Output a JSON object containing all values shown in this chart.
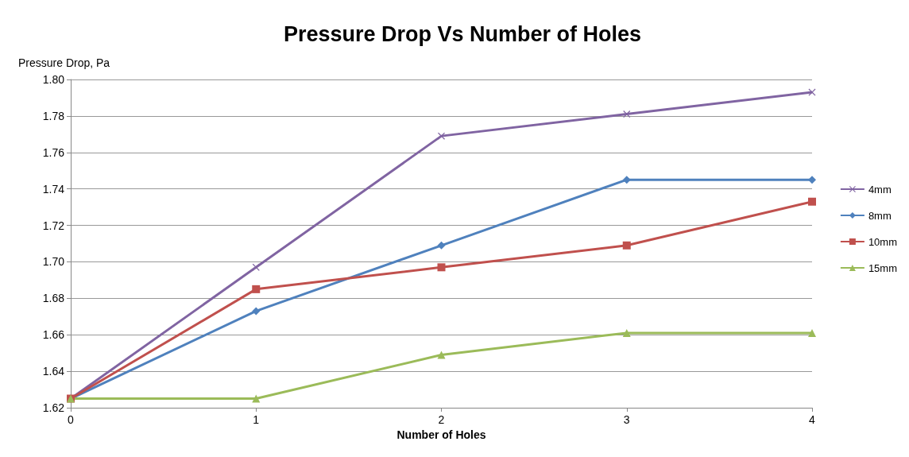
{
  "chart_data": {
    "type": "line",
    "title": "Pressure Drop Vs Number of Holes",
    "xlabel": "Number of Holes",
    "ylabel": "Pressure Drop, Pa",
    "x": [
      0,
      1,
      2,
      3,
      4
    ],
    "series": [
      {
        "name": "4mm",
        "color": "#8064a2",
        "marker": "cross",
        "values": [
          1.625,
          1.697,
          1.769,
          1.781,
          1.793
        ]
      },
      {
        "name": "8mm",
        "color": "#4f81bd",
        "marker": "diamond",
        "values": [
          1.625,
          1.673,
          1.709,
          1.745,
          1.745
        ]
      },
      {
        "name": "10mm",
        "color": "#c0504d",
        "marker": "square",
        "values": [
          1.625,
          1.685,
          1.697,
          1.709,
          1.733
        ]
      },
      {
        "name": "15mm",
        "color": "#9bbb59",
        "marker": "triangle",
        "values": [
          1.625,
          1.625,
          1.649,
          1.661,
          1.661
        ]
      }
    ],
    "xlim": [
      0,
      4
    ],
    "xticks": [
      0,
      1,
      2,
      3,
      4
    ],
    "ylim": [
      1.62,
      1.8
    ],
    "yticks": [
      1.62,
      1.64,
      1.66,
      1.68,
      {
        "value": 1.7,
        "label": "1.70"
      },
      1.72,
      1.74,
      1.76,
      1.78,
      {
        "value": 1.8,
        "label": "1.80"
      }
    ],
    "grid": "y",
    "legend": "right",
    "line_style": "solid"
  }
}
